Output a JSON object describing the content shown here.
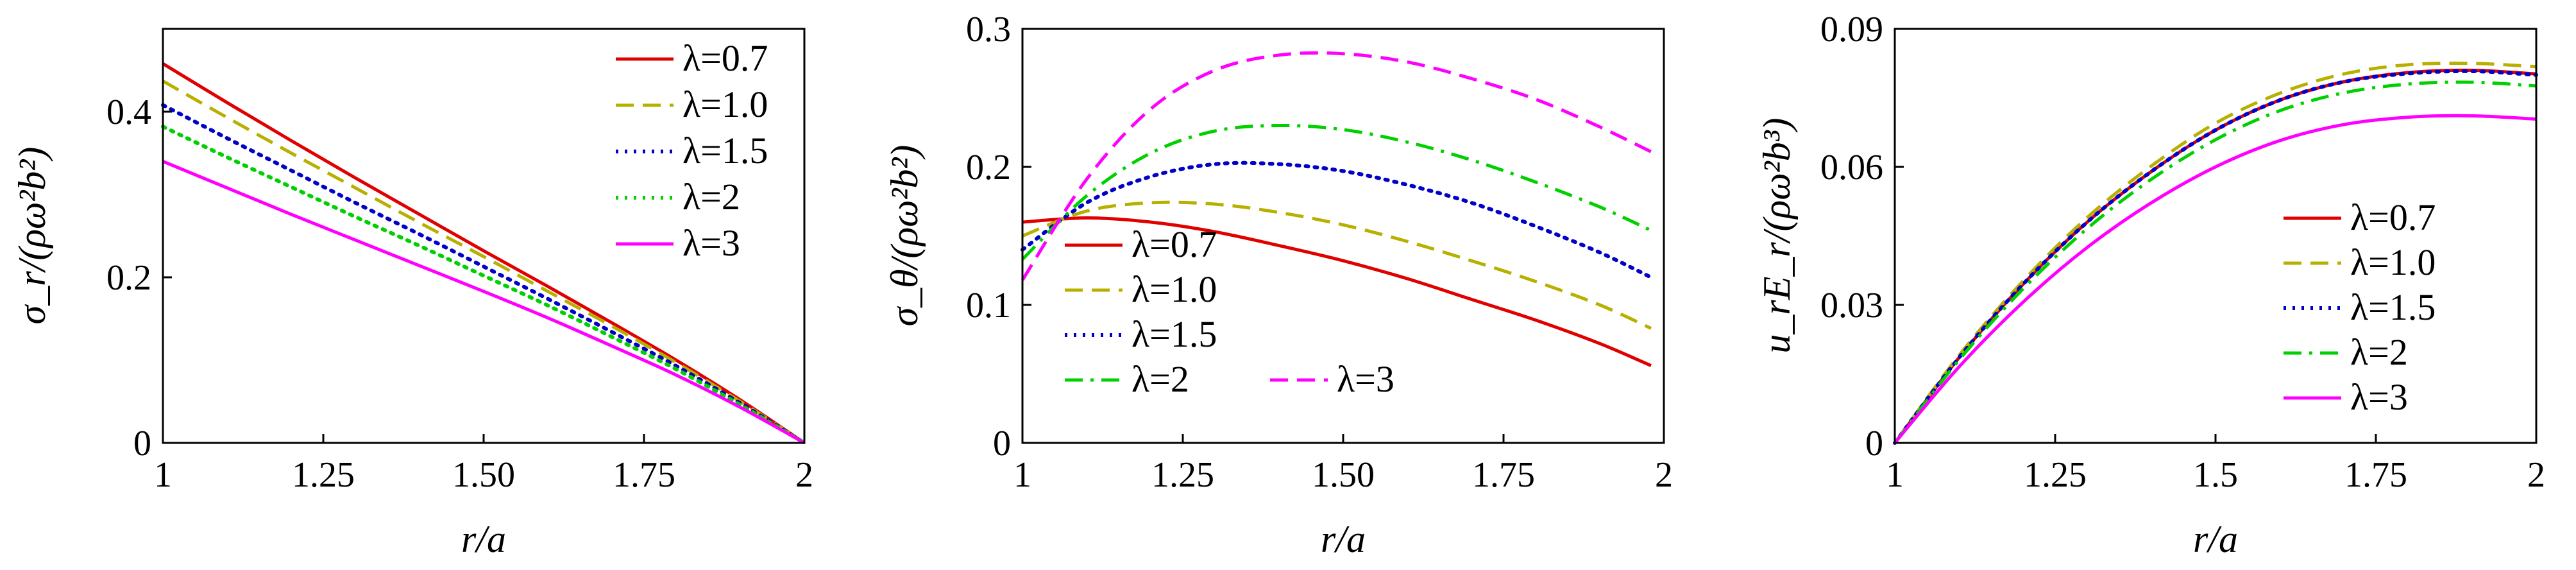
{
  "chart_data": [
    {
      "type": "line",
      "xlabel": "r/a",
      "ylabel": "σ_r/(ρω²b²)",
      "xlim": [
        1,
        2
      ],
      "ylim": [
        0,
        0.5
      ],
      "xticks": [
        "1",
        "1.25",
        "1.50",
        "1.75",
        "2"
      ],
      "yticks": [
        "0",
        "0.2",
        "0.4"
      ],
      "legend": "top-right",
      "x": [
        1,
        1.1,
        1.2,
        1.3,
        1.4,
        1.5,
        1.6,
        1.7,
        1.8,
        1.9,
        2
      ],
      "series": [
        {
          "name": "λ=0.7",
          "color": "#e00000",
          "dash": "solid",
          "values": [
            0.458,
            0.411,
            0.365,
            0.32,
            0.276,
            0.232,
            0.189,
            0.145,
            0.1,
            0.052,
            0
          ]
        },
        {
          "name": "λ=1.0",
          "color": "#b8b000",
          "dash": "dashed",
          "values": [
            0.437,
            0.393,
            0.35,
            0.308,
            0.266,
            0.225,
            0.183,
            0.141,
            0.097,
            0.05,
            0
          ]
        },
        {
          "name": "λ=1.5",
          "color": "#0000c8",
          "dash": "dotted",
          "values": [
            0.408,
            0.368,
            0.329,
            0.29,
            0.252,
            0.213,
            0.174,
            0.134,
            0.093,
            0.048,
            0
          ]
        },
        {
          "name": "λ=2",
          "color": "#00d000",
          "dash": "dotted",
          "values": [
            0.382,
            0.345,
            0.309,
            0.273,
            0.238,
            0.202,
            0.166,
            0.128,
            0.089,
            0.046,
            0
          ]
        },
        {
          "name": "λ=3",
          "color": "#ff00ff",
          "dash": "solid",
          "values": [
            0.34,
            0.308,
            0.276,
            0.245,
            0.214,
            0.183,
            0.151,
            0.117,
            0.082,
            0.043,
            0
          ]
        }
      ]
    },
    {
      "type": "line",
      "xlabel": "r/a",
      "ylabel": "σ_θ/(ρω²b²)",
      "xlim": [
        1,
        2
      ],
      "ylim": [
        0,
        0.3
      ],
      "xticks": [
        "1",
        "1.25",
        "1.50",
        "1.75",
        "2"
      ],
      "yticks": [
        "0",
        "0.1",
        "0.2",
        "0.3"
      ],
      "legend": "bottom-left",
      "x": [
        1,
        1.1,
        1.2,
        1.3,
        1.4,
        1.5,
        1.6,
        1.7,
        1.8,
        1.9,
        1.98
      ],
      "series": [
        {
          "name": "λ=0.7",
          "color": "#e00000",
          "dash": "solid",
          "values": [
            0.16,
            0.163,
            0.16,
            0.153,
            0.143,
            0.132,
            0.119,
            0.104,
            0.089,
            0.072,
            0.056
          ]
        },
        {
          "name": "λ=1.0",
          "color": "#b8b000",
          "dash": "dashed",
          "values": [
            0.15,
            0.168,
            0.174,
            0.173,
            0.167,
            0.158,
            0.146,
            0.132,
            0.117,
            0.1,
            0.083
          ]
        },
        {
          "name": "λ=1.5",
          "color": "#0000c8",
          "dash": "dotted",
          "values": [
            0.14,
            0.174,
            0.193,
            0.202,
            0.202,
            0.197,
            0.187,
            0.174,
            0.157,
            0.138,
            0.12
          ]
        },
        {
          "name": "λ=2",
          "color": "#00d000",
          "dash": "dashdot",
          "values": [
            0.133,
            0.179,
            0.21,
            0.226,
            0.23,
            0.227,
            0.218,
            0.205,
            0.189,
            0.171,
            0.154
          ]
        },
        {
          "name": "λ=3",
          "color": "#ff00ff",
          "dash": "dashed",
          "values": [
            0.118,
            0.191,
            0.242,
            0.27,
            0.281,
            0.282,
            0.276,
            0.264,
            0.249,
            0.229,
            0.211
          ]
        }
      ]
    },
    {
      "type": "line",
      "xlabel": "r/a",
      "ylabel": "u_rE_r/(ρω²b³)",
      "xlim": [
        1,
        2
      ],
      "ylim": [
        0,
        0.09
      ],
      "xticks": [
        "1",
        "1.25",
        "1.5",
        "1.75",
        "2"
      ],
      "yticks": [
        "0",
        "0.03",
        "0.06",
        "0.09"
      ],
      "legend": "bottom-right",
      "x": [
        1,
        1.1,
        1.2,
        1.3,
        1.4,
        1.5,
        1.6,
        1.7,
        1.8,
        1.9,
        2
      ],
      "series": [
        {
          "name": "λ=0.7",
          "color": "#e00000",
          "dash": "solid",
          "values": [
            0,
            0.0185,
            0.0345,
            0.048,
            0.059,
            0.068,
            0.0745,
            0.0785,
            0.0805,
            0.081,
            0.0802
          ]
        },
        {
          "name": "λ=1.0",
          "color": "#b8b000",
          "dash": "dashed",
          "values": [
            0,
            0.019,
            0.0352,
            0.049,
            0.0602,
            0.0695,
            0.076,
            0.0802,
            0.0822,
            0.0825,
            0.0818
          ]
        },
        {
          "name": "λ=1.5",
          "color": "#0000c8",
          "dash": "dotted",
          "values": [
            0,
            0.0185,
            0.0345,
            0.048,
            0.059,
            0.068,
            0.0745,
            0.0785,
            0.0803,
            0.0808,
            0.08
          ]
        },
        {
          "name": "λ=2",
          "color": "#00d000",
          "dash": "dashdot",
          "values": [
            0,
            0.018,
            0.0335,
            0.0466,
            0.0573,
            0.0659,
            0.0722,
            0.0761,
            0.078,
            0.0784,
            0.0776
          ]
        },
        {
          "name": "λ=3",
          "color": "#ff00ff",
          "dash": "solid",
          "values": [
            0,
            0.0165,
            0.0306,
            0.0425,
            0.0522,
            0.06,
            0.0657,
            0.0692,
            0.0708,
            0.0711,
            0.0704
          ]
        }
      ]
    }
  ]
}
